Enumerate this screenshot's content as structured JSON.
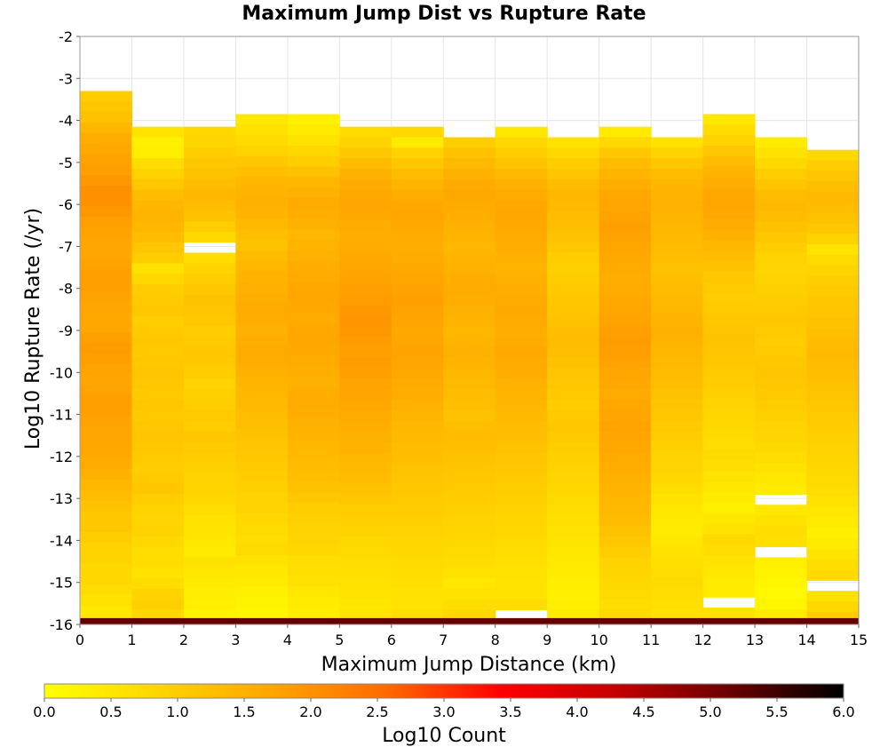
{
  "chart_data": {
    "type": "heatmap",
    "title": "Maximum Jump Dist vs Rupture Rate",
    "xlabel": "Maximum Jump Distance (km)",
    "ylabel": "Log10 Rupture Rate (/yr)",
    "xlim": [
      0,
      15
    ],
    "ylim": [
      -16,
      -2
    ],
    "x_ticks": [
      "0",
      "1",
      "2",
      "3",
      "4",
      "5",
      "6",
      "7",
      "8",
      "9",
      "10",
      "11",
      "12",
      "13",
      "14",
      "15"
    ],
    "y_ticks": [
      "-2",
      "-3",
      "-4",
      "-5",
      "-6",
      "-7",
      "-8",
      "-9",
      "-10",
      "-11",
      "-12",
      "-13",
      "-14",
      "-15",
      "-16"
    ],
    "x_bin_width": 1,
    "y_bin_height": 0.25,
    "colorbar": {
      "label": "Log10 Count",
      "range": [
        0,
        6
      ],
      "ticks": [
        "0.0",
        "0.5",
        "1.0",
        "1.5",
        "2.0",
        "2.5",
        "3.0",
        "3.5",
        "4.0",
        "4.5",
        "5.0",
        "5.5",
        "6.0"
      ],
      "colors": [
        "#ffff00",
        "#ffd500",
        "#ffa500",
        "#ff6a00",
        "#ff0000",
        "#c40000",
        "#6a0000",
        "#000000"
      ]
    },
    "columns": [
      {
        "x": 0,
        "top": -3.3,
        "values": [
          1.0,
          1.1,
          1.2,
          1.4,
          1.55,
          1.65,
          1.75,
          1.8,
          1.9,
          2.0,
          2.0,
          1.9,
          1.8,
          1.75,
          1.7,
          1.7,
          1.75,
          1.8,
          1.8,
          1.75,
          1.7,
          1.65,
          1.7,
          1.8,
          1.85,
          1.8,
          1.75,
          1.7,
          1.75,
          1.8,
          1.8,
          1.75,
          1.7,
          1.7,
          1.65,
          1.6,
          1.5,
          1.4,
          1.3,
          1.2,
          1.1,
          1.1,
          1.0,
          0.9,
          0.9,
          0.8,
          0.8,
          0.7,
          0.6,
          0.5,
          0.55,
          0.9,
          1.4,
          1.6,
          1.8,
          1.9
        ]
      },
      {
        "x": 1,
        "top": -4.15,
        "values": [
          0.55,
          0.3,
          0.35,
          0.7,
          0.9,
          1.1,
          1.3,
          1.4,
          1.45,
          1.4,
          1.3,
          1.15,
          1.0,
          0.6,
          0.8,
          1.0,
          1.05,
          1.1,
          1.0,
          1.05,
          1.1,
          1.05,
          1.1,
          1.15,
          1.1,
          1.05,
          1.1,
          1.05,
          1.1,
          1.15,
          1.1,
          1.05,
          1.0,
          1.05,
          1.1,
          1.0,
          0.9,
          0.85,
          0.9,
          0.8,
          0.7,
          0.7,
          0.6,
          0.7,
          0.9,
          0.95,
          0.8,
          0.6,
          0.3,
          0.8,
          0.6,
          0.7,
          0.75,
          1.3,
          1.5,
          1.65
        ]
      },
      {
        "x": 2,
        "top": -4.15,
        "values": [
          0.8,
          0.85,
          1.0,
          1.1,
          1.2,
          1.3,
          1.4,
          1.3,
          1.2,
          1.0,
          0.8,
          null,
          0.7,
          0.9,
          1.0,
          1.1,
          1.2,
          1.15,
          1.1,
          1.0,
          1.05,
          1.1,
          1.05,
          1.0,
          0.9,
          0.95,
          1.0,
          1.05,
          1.0,
          1.1,
          1.05,
          1.0,
          0.95,
          0.9,
          0.85,
          0.8,
          0.7,
          0.6,
          0.55,
          0.5,
          0.45,
          0.6,
          0.5,
          0.4,
          0.35,
          0.3,
          0.25,
          0.2,
          0.3,
          0.4,
          0.6,
          0.8,
          1.3,
          1.5,
          1.6,
          1.7
        ]
      },
      {
        "x": 3,
        "top": -3.85,
        "values": [
          0.5,
          0.6,
          0.75,
          0.9,
          1.1,
          1.25,
          1.4,
          1.45,
          1.5,
          1.45,
          1.35,
          1.25,
          1.2,
          1.3,
          1.4,
          1.45,
          1.5,
          1.55,
          1.6,
          1.55,
          1.5,
          1.55,
          1.6,
          1.55,
          1.5,
          1.45,
          1.4,
          1.35,
          1.3,
          1.25,
          1.2,
          1.15,
          1.1,
          1.05,
          1.0,
          0.95,
          0.9,
          0.9,
          0.8,
          0.75,
          0.7,
          0.75,
          0.6,
          0.5,
          0.4,
          0.3,
          0.25,
          0.2,
          0.3,
          0.45,
          0.6,
          0.8,
          1.5,
          1.6,
          1.8,
          1.9
        ]
      },
      {
        "x": 4,
        "top": -3.85,
        "values": [
          0.3,
          0.4,
          0.6,
          0.8,
          1.0,
          1.2,
          1.4,
          1.5,
          1.6,
          1.55,
          1.5,
          1.4,
          1.45,
          1.5,
          1.55,
          1.6,
          1.65,
          1.7,
          1.65,
          1.6,
          1.65,
          1.7,
          1.65,
          1.6,
          1.55,
          1.5,
          1.55,
          1.6,
          1.55,
          1.5,
          1.45,
          1.4,
          1.35,
          1.3,
          1.25,
          1.2,
          1.1,
          1.0,
          0.95,
          0.9,
          0.85,
          0.8,
          0.7,
          0.65,
          0.6,
          0.5,
          0.4,
          0.35,
          0.45,
          0.6,
          0.75,
          0.9,
          1.6,
          1.75,
          1.9,
          2.0
        ]
      },
      {
        "x": 5,
        "top": -4.15,
        "values": [
          0.75,
          0.9,
          1.1,
          1.3,
          1.5,
          1.6,
          1.65,
          1.7,
          1.65,
          1.6,
          1.55,
          1.6,
          1.65,
          1.7,
          1.75,
          1.8,
          1.85,
          1.9,
          1.95,
          1.9,
          1.85,
          1.8,
          1.85,
          1.8,
          1.75,
          1.7,
          1.65,
          1.6,
          1.55,
          1.5,
          1.45,
          1.4,
          1.35,
          1.3,
          1.2,
          1.1,
          1.0,
          0.95,
          0.9,
          0.8,
          0.75,
          0.7,
          0.65,
          0.6,
          0.55,
          0.5,
          0.55,
          0.65,
          0.8,
          1.0,
          1.2,
          1.5,
          1.7,
          1.9,
          2.1,
          2.2
        ]
      },
      {
        "x": 6,
        "top": -4.15,
        "values": [
          0.8,
          0.4,
          0.9,
          1.1,
          1.3,
          1.45,
          1.55,
          1.65,
          1.7,
          1.65,
          1.6,
          1.55,
          1.6,
          1.65,
          1.7,
          1.75,
          1.8,
          1.75,
          1.7,
          1.65,
          1.7,
          1.75,
          1.7,
          1.65,
          1.6,
          1.55,
          1.5,
          1.45,
          1.4,
          1.35,
          1.3,
          1.25,
          1.2,
          1.15,
          1.1,
          1.05,
          1.0,
          0.95,
          0.9,
          0.85,
          0.8,
          0.75,
          0.7,
          0.65,
          0.6,
          0.6,
          0.65,
          0.75,
          0.9,
          1.1,
          1.3,
          1.5,
          1.7,
          1.8,
          1.9,
          2.0
        ]
      },
      {
        "x": 7,
        "top": -4.4,
        "values": [
          1.0,
          1.2,
          1.35,
          1.5,
          1.6,
          1.65,
          1.6,
          1.55,
          1.5,
          1.45,
          1.4,
          1.45,
          1.5,
          1.55,
          1.6,
          1.55,
          1.5,
          1.45,
          1.4,
          1.45,
          1.5,
          1.45,
          1.4,
          1.35,
          1.3,
          1.25,
          1.2,
          1.25,
          1.3,
          1.25,
          1.2,
          1.15,
          1.1,
          1.05,
          1.0,
          0.95,
          0.9,
          0.85,
          0.8,
          0.75,
          0.7,
          0.6,
          0.5,
          0.6,
          0.7,
          0.8,
          0.9,
          1.1,
          1.3,
          1.5,
          1.6,
          1.7,
          1.8,
          1.9
        ]
      },
      {
        "x": 8,
        "top": -4.15,
        "values": [
          0.5,
          0.8,
          1.0,
          1.2,
          1.35,
          1.5,
          1.6,
          1.65,
          1.7,
          1.65,
          1.6,
          1.55,
          1.5,
          1.45,
          1.5,
          1.55,
          1.6,
          1.65,
          1.6,
          1.55,
          1.6,
          1.65,
          1.6,
          1.55,
          1.5,
          1.45,
          1.4,
          1.35,
          1.3,
          1.25,
          1.2,
          1.15,
          1.1,
          1.05,
          1.0,
          0.95,
          0.9,
          0.85,
          0.8,
          0.75,
          0.7,
          0.65,
          0.6,
          0.55,
          0.6,
          0.7,
          null,
          0.8,
          1.0,
          1.2,
          1.4,
          1.6,
          1.7,
          1.8,
          1.9
        ]
      },
      {
        "x": 9,
        "top": -4.4,
        "values": [
          0.6,
          0.8,
          1.0,
          1.15,
          1.3,
          1.4,
          1.35,
          1.3,
          1.25,
          1.2,
          1.1,
          1.0,
          0.95,
          1.0,
          1.05,
          1.1,
          1.15,
          1.2,
          1.25,
          1.3,
          1.25,
          1.2,
          1.15,
          1.1,
          1.05,
          1.0,
          1.05,
          1.1,
          1.05,
          1.0,
          0.95,
          0.9,
          0.85,
          0.8,
          0.75,
          0.7,
          0.65,
          0.6,
          0.55,
          0.5,
          0.45,
          0.4,
          0.35,
          0.3,
          0.35,
          0.4,
          0.3,
          0.2,
          0.3,
          0.6,
          0.9,
          1.2,
          1.5,
          1.7,
          1.8,
          1.9
        ]
      },
      {
        "x": 10,
        "top": -4.15,
        "values": [
          0.4,
          0.8,
          1.1,
          1.3,
          1.45,
          1.55,
          1.65,
          1.7,
          1.75,
          1.8,
          1.75,
          1.7,
          1.65,
          1.6,
          1.55,
          1.6,
          1.65,
          1.7,
          1.75,
          1.8,
          1.85,
          1.8,
          1.75,
          1.7,
          1.65,
          1.6,
          1.65,
          1.7,
          1.75,
          1.7,
          1.65,
          1.6,
          1.55,
          1.5,
          1.45,
          1.4,
          1.35,
          1.3,
          1.2,
          1.1,
          1.0,
          0.9,
          0.85,
          0.8,
          0.75,
          0.7,
          0.75,
          0.8,
          1.0,
          1.2,
          1.4,
          1.6,
          1.8,
          1.9,
          2.0,
          2.0
        ]
      },
      {
        "x": 11,
        "top": -4.4,
        "values": [
          0.6,
          0.9,
          1.1,
          1.3,
          1.4,
          1.45,
          1.5,
          1.45,
          1.4,
          1.35,
          1.3,
          1.25,
          1.2,
          1.25,
          1.3,
          1.35,
          1.4,
          1.45,
          1.5,
          1.45,
          1.4,
          1.35,
          1.3,
          1.25,
          1.2,
          1.15,
          1.1,
          1.05,
          1.0,
          0.95,
          0.9,
          0.85,
          0.8,
          0.7,
          0.6,
          0.5,
          0.45,
          0.4,
          0.5,
          0.6,
          0.65,
          0.7,
          0.75,
          0.7,
          0.65,
          0.6,
          0.55,
          0.5,
          0.4,
          0.3,
          0.6,
          1.0,
          1.3,
          1.5,
          1.7,
          1.8
        ]
      },
      {
        "x": 12,
        "top": -3.85,
        "values": [
          0.5,
          0.7,
          0.9,
          1.1,
          1.3,
          1.45,
          1.55,
          1.65,
          1.7,
          1.65,
          1.6,
          1.5,
          1.4,
          1.3,
          1.2,
          1.1,
          1.05,
          1.0,
          1.05,
          1.1,
          1.15,
          1.2,
          1.15,
          1.1,
          1.05,
          1.0,
          0.95,
          0.9,
          0.85,
          0.8,
          0.75,
          0.7,
          0.75,
          0.7,
          0.6,
          0.5,
          0.4,
          0.3,
          0.5,
          0.6,
          0.8,
          0.7,
          0.6,
          0.5,
          0.4,
          0.4,
          null,
          0.6,
          0.9,
          1.1,
          1.3,
          1.6,
          1.8,
          1.9
        ]
      },
      {
        "x": 13,
        "top": -4.4,
        "values": [
          0.4,
          0.6,
          0.8,
          1.0,
          1.15,
          1.3,
          1.35,
          1.3,
          1.2,
          1.1,
          1.0,
          0.9,
          0.85,
          0.9,
          0.95,
          1.0,
          1.05,
          1.1,
          1.05,
          1.0,
          1.05,
          1.1,
          1.15,
          1.1,
          1.05,
          1.0,
          0.95,
          0.9,
          0.85,
          0.8,
          0.7,
          0.6,
          0.5,
          0.4,
          null,
          0.5,
          0.6,
          0.7,
          0.65,
          null,
          0.3,
          0.25,
          0.2,
          0.15,
          0.2,
          0.4,
          0.7,
          1.0,
          1.3,
          1.5,
          1.7,
          1.8
        ]
      },
      {
        "x": 14,
        "top": -4.7,
        "values": [
          0.8,
          1.0,
          1.15,
          1.25,
          1.35,
          1.3,
          1.2,
          1.1,
          0.9,
          0.6,
          0.75,
          0.9,
          1.0,
          1.05,
          1.1,
          1.15,
          1.2,
          1.25,
          1.3,
          1.35,
          1.3,
          1.25,
          1.2,
          1.15,
          1.1,
          1.05,
          1.0,
          0.95,
          0.9,
          0.85,
          0.8,
          0.75,
          0.7,
          0.6,
          0.5,
          0.4,
          0.3,
          0.4,
          0.55,
          0.7,
          0.75,
          null,
          0.6,
          0.8,
          1.0,
          1.2,
          1.4,
          1.6,
          1.7,
          1.8
        ]
      }
    ],
    "bottom_band": {
      "y_range": [
        -16,
        -15.85
      ],
      "value": 5.2
    }
  }
}
